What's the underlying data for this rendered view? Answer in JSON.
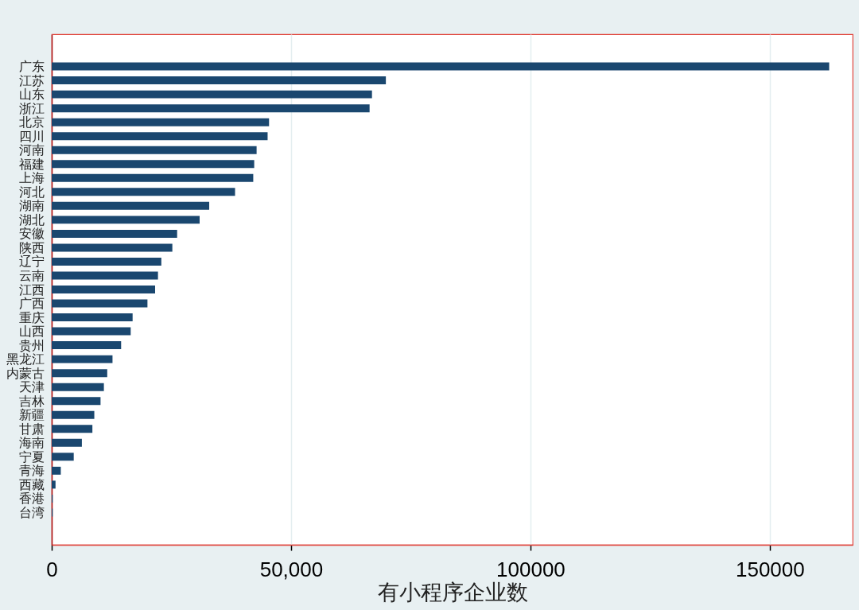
{
  "chart_data": {
    "type": "bar",
    "orientation": "horizontal",
    "categories": [
      "广东",
      "江苏",
      "山东",
      "浙江",
      "北京",
      "四川",
      "河南",
      "福建",
      "上海",
      "河北",
      "湖南",
      "湖北",
      "安徽",
      "陕西",
      "辽宁",
      "云南",
      "江西",
      "广西",
      "重庆",
      "山西",
      "贵州",
      "黑龙江",
      "内蒙古",
      "天津",
      "吉林",
      "新疆",
      "甘肃",
      "海南",
      "宁夏",
      "青海",
      "西藏",
      "香港",
      "台湾"
    ],
    "values": [
      162400,
      69800,
      66900,
      66400,
      45400,
      45100,
      42800,
      42300,
      42100,
      38300,
      32900,
      30900,
      26200,
      25200,
      22900,
      22200,
      21600,
      20000,
      16900,
      16500,
      14500,
      12700,
      11600,
      10900,
      10200,
      8900,
      8500,
      6300,
      4600,
      1900,
      800,
      200,
      200
    ],
    "color": "#1a476f",
    "xlabel": "有小程序企业数",
    "xlim": [
      0,
      167300
    ],
    "xticks": [
      0,
      {
        "value": 50000,
        "label": "50,000"
      },
      100000,
      150000
    ],
    "grid": "x"
  }
}
